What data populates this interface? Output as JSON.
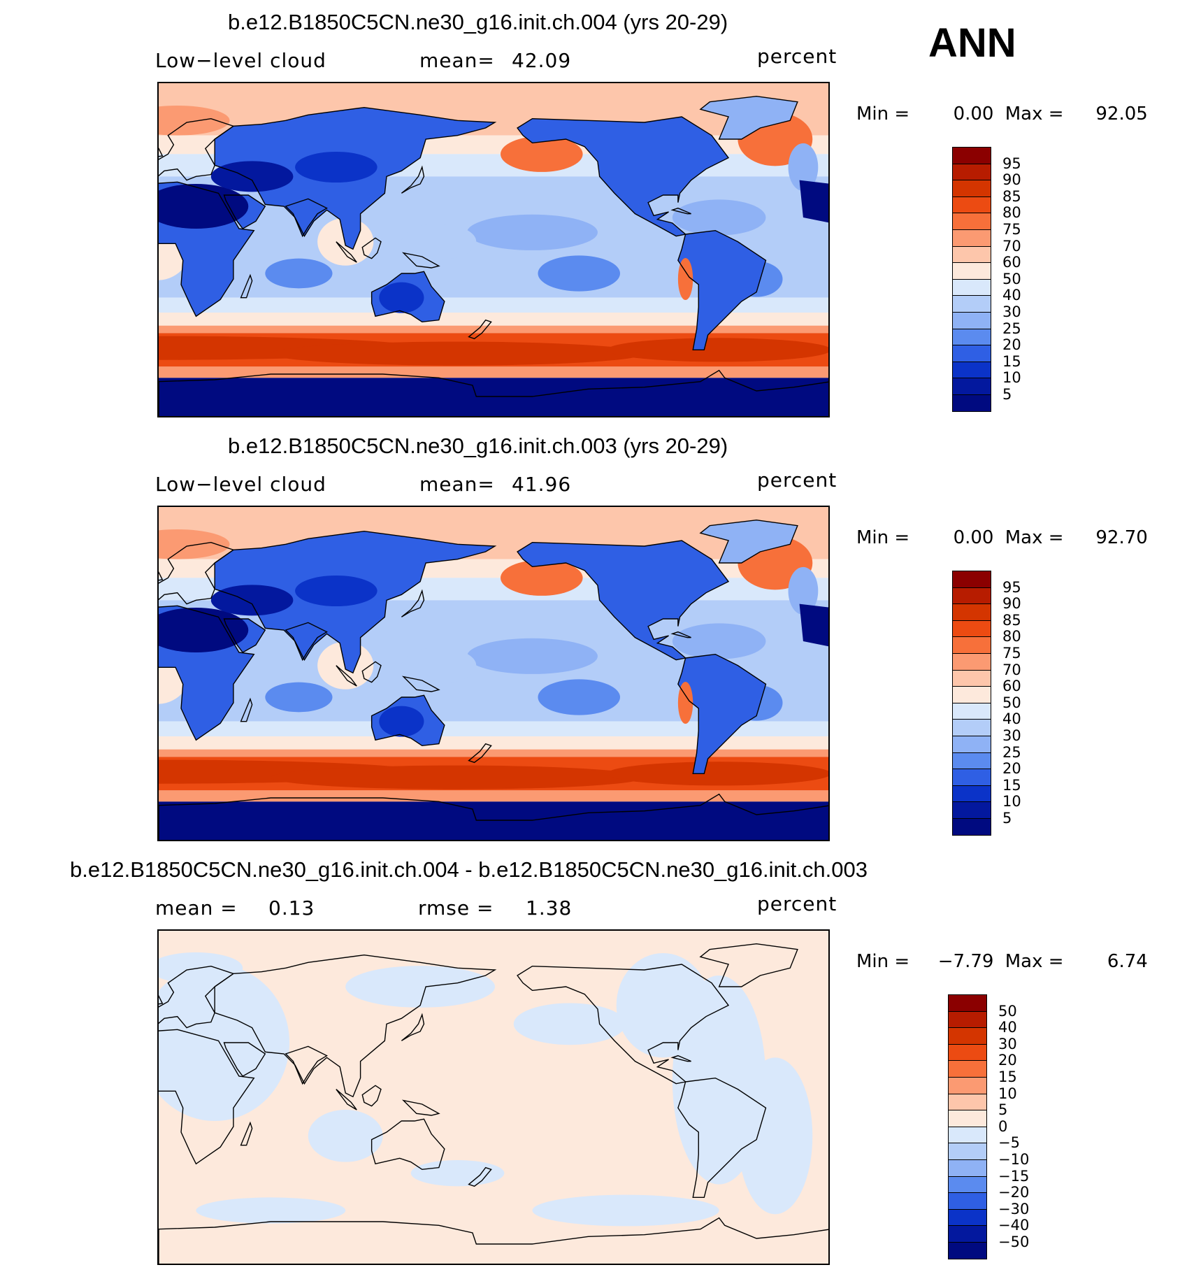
{
  "season": "ANN",
  "panels": [
    {
      "title": "b.e12.B1850C5CN.ne30_g16.init.ch.004 (yrs 20-29)",
      "left_label": "Low−level cloud",
      "stat_label": "mean=",
      "stat_value": "42.09",
      "units": "percent",
      "min_label": "Min =",
      "min_value": "0.00",
      "max_label": "Max =",
      "max_value": "92.05",
      "colorbar_labels": [
        "95",
        "90",
        "85",
        "80",
        "75",
        "70",
        "60",
        "50",
        "40",
        "30",
        "25",
        "20",
        "15",
        "10",
        "5"
      ]
    },
    {
      "title": "b.e12.B1850C5CN.ne30_g16.init.ch.003 (yrs 20-29)",
      "left_label": "Low−level cloud",
      "stat_label": "mean=",
      "stat_value": "41.96",
      "units": "percent",
      "min_label": "Min =",
      "min_value": "0.00",
      "max_label": "Max =",
      "max_value": "92.70",
      "colorbar_labels": [
        "95",
        "90",
        "85",
        "80",
        "75",
        "70",
        "60",
        "50",
        "40",
        "30",
        "25",
        "20",
        "15",
        "10",
        "5"
      ]
    },
    {
      "title": "b.e12.B1850C5CN.ne30_g16.init.ch.004 - b.e12.B1850C5CN.ne30_g16.init.ch.003",
      "left_label": "mean =",
      "left_value": "0.13",
      "stat_label": "rmse =",
      "stat_value": "1.38",
      "units": "percent",
      "min_label": "Min =",
      "min_value": "−7.79",
      "max_label": "Max =",
      "max_value": "6.74",
      "colorbar_labels": [
        "50",
        "40",
        "30",
        "20",
        "15",
        "10",
        "5",
        "0",
        "−5",
        "−10",
        "−15",
        "−20",
        "−30",
        "−40",
        "−50"
      ]
    }
  ],
  "colors": {
    "palette_top_to_bottom": [
      "#8b0000",
      "#b71c00",
      "#d43500",
      "#ec4b12",
      "#f7703a",
      "#fb9a72",
      "#fdc6ab",
      "#fde9dc",
      "#d9e8fb",
      "#b3cdf8",
      "#8fb2f5",
      "#5b8bef",
      "#2f5fe4",
      "#0b33c8",
      "#03189e",
      "#000a80"
    ],
    "land_outline": "#000000"
  }
}
